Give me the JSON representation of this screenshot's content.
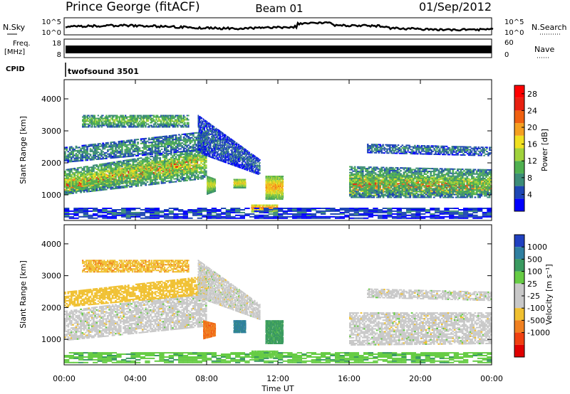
{
  "header": {
    "station": "Prince George (fitACF)",
    "beam": "Beam 01",
    "date": "01/Sep/2012"
  },
  "strip": {
    "nsky_label": "N.Sky",
    "nsearch_label": "N.Search",
    "nsky_ticks": [
      "10^5",
      "10^0"
    ],
    "nsky_right_ticks": [
      "10^5",
      "10^0"
    ],
    "freq_label": "Freq.",
    "freq_unit": "[MHz]",
    "freq_ticks": [
      "18",
      "8"
    ],
    "nave_label": "Nave",
    "nave_ticks": [
      "60",
      "0"
    ],
    "cpid_label": "CPID",
    "cpid_value": "twofsound 3501"
  },
  "colors": {
    "power_scale": [
      "#0000ff",
      "#1e46b4",
      "#3c8c78",
      "#4fb050",
      "#a0d23c",
      "#f0e020",
      "#f5a020",
      "#f06010",
      "#e82010",
      "#ff0000"
    ],
    "velocity_scale": [
      "#2040c0",
      "#2f7fa0",
      "#3a9a60",
      "#66cc44",
      "#c8c8c8",
      "#c8c8c8",
      "#f0c030",
      "#f08020",
      "#f04010",
      "#e00000"
    ],
    "ground_scatter": "#c8c8c8"
  },
  "chart_data": [
    {
      "type": "heatmap",
      "name": "power",
      "ylabel": "Slant Range [km]",
      "yticks": [
        1000,
        2000,
        3000,
        4000
      ],
      "ylim": [
        200,
        4600
      ],
      "xlim": [
        0,
        24
      ],
      "colorbar_label": "Power [dB]",
      "colorbar_ticks": [
        "4",
        "8",
        "12",
        "16",
        "20",
        "24",
        "28"
      ],
      "colorbar_range": [
        0,
        30
      ],
      "bands": [
        {
          "t0": 0,
          "t1": 7.5,
          "r0": 1050,
          "r1": 1500,
          "r0_end": 1700,
          "r1_end": 2300,
          "level": 27
        },
        {
          "t0": 0,
          "t1": 8,
          "r0": 1000,
          "r1": 1800,
          "r0_end": 1500,
          "r1_end": 2500,
          "level": 14
        },
        {
          "t0": 0,
          "t1": 8,
          "r0": 2000,
          "r1": 2500,
          "r0_end": 2400,
          "r1_end": 3000,
          "level": 9
        },
        {
          "t0": 1,
          "t1": 7,
          "r0": 3100,
          "r1": 3500,
          "r0_end": 3100,
          "r1_end": 3500,
          "level": 12
        },
        {
          "t0": 7.5,
          "t1": 11,
          "r0": 2300,
          "r1": 3500,
          "r0_end": 1600,
          "r1_end": 2100,
          "level": 6
        },
        {
          "t0": 8,
          "t1": 8.5,
          "r0": 1000,
          "r1": 1600,
          "r0_end": 1100,
          "r1_end": 1500,
          "level": 16
        },
        {
          "t0": 9.5,
          "t1": 10.2,
          "r0": 1200,
          "r1": 1500,
          "r0_end": 1200,
          "r1_end": 1500,
          "level": 18
        },
        {
          "t0": 11.3,
          "t1": 12.3,
          "r0": 850,
          "r1": 1600,
          "r0_end": 850,
          "r1_end": 1600,
          "level": 20
        },
        {
          "t0": 10.5,
          "t1": 12,
          "r0": 450,
          "r1": 700,
          "r0_end": 450,
          "r1_end": 700,
          "level": 22
        },
        {
          "t0": 16,
          "t1": 24,
          "r0": 950,
          "r1": 1650,
          "r0_end": 1000,
          "r1_end": 1500,
          "level": 24
        },
        {
          "t0": 16,
          "t1": 24,
          "r0": 900,
          "r1": 1900,
          "r0_end": 900,
          "r1_end": 1800,
          "level": 12
        },
        {
          "t0": 17,
          "t1": 24,
          "r0": 2300,
          "r1": 2600,
          "r0_end": 2200,
          "r1_end": 2500,
          "level": 7
        },
        {
          "t0": 0,
          "t1": 24,
          "r0": 250,
          "r1": 600,
          "r0_end": 250,
          "r1_end": 600,
          "level": 5
        }
      ]
    },
    {
      "type": "heatmap",
      "name": "velocity",
      "ylabel": "Slant Range [km]",
      "yticks": [
        1000,
        2000,
        3000,
        4000
      ],
      "ylim": [
        200,
        4600
      ],
      "xlim": [
        0,
        24
      ],
      "xlabel": "Time UT",
      "xticks": [
        "00:00",
        "04:00",
        "08:00",
        "12:00",
        "16:00",
        "20:00",
        "00:00"
      ],
      "colorbar_label": "Velocity [m s⁻¹]",
      "colorbar_ticks": [
        "1000",
        "500",
        "100",
        "25",
        "-25",
        "-100",
        "-500",
        "-1000"
      ],
      "bands": [
        {
          "t0": 0,
          "t1": 8,
          "r0": 950,
          "r1": 1900,
          "r0_end": 1400,
          "r1_end": 2500,
          "level": "ground"
        },
        {
          "t0": 0,
          "t1": 8,
          "r0": 2000,
          "r1": 2500,
          "r0_end": 2400,
          "r1_end": 3000,
          "level": -60
        },
        {
          "t0": 1,
          "t1": 7,
          "r0": 3100,
          "r1": 3500,
          "r0_end": 3100,
          "r1_end": 3500,
          "level": -80
        },
        {
          "t0": 7.5,
          "t1": 11,
          "r0": 2300,
          "r1": 3500,
          "r0_end": 1600,
          "r1_end": 2100,
          "level": "ground"
        },
        {
          "t0": 7.8,
          "t1": 8.5,
          "r0": 1000,
          "r1": 1600,
          "r0_end": 1100,
          "r1_end": 1500,
          "level": -400
        },
        {
          "t0": 9.5,
          "t1": 10.2,
          "r0": 1200,
          "r1": 1600,
          "r0_end": 1200,
          "r1_end": 1600,
          "level": 700
        },
        {
          "t0": 11.3,
          "t1": 12.3,
          "r0": 850,
          "r1": 1600,
          "r0_end": 850,
          "r1_end": 1600,
          "level": 150
        },
        {
          "t0": 10.5,
          "t1": 12,
          "r0": 400,
          "r1": 650,
          "r0_end": 400,
          "r1_end": 650,
          "level": 60
        },
        {
          "t0": 16,
          "t1": 24,
          "r0": 800,
          "r1": 1850,
          "r0_end": 850,
          "r1_end": 1850,
          "level": "ground"
        },
        {
          "t0": 17,
          "t1": 24,
          "r0": 2300,
          "r1": 2600,
          "r0_end": 2200,
          "r1_end": 2500,
          "level": "ground"
        },
        {
          "t0": 0,
          "t1": 24,
          "r0": 250,
          "r1": 600,
          "r0_end": 250,
          "r1_end": 600,
          "level": 80
        }
      ]
    }
  ]
}
